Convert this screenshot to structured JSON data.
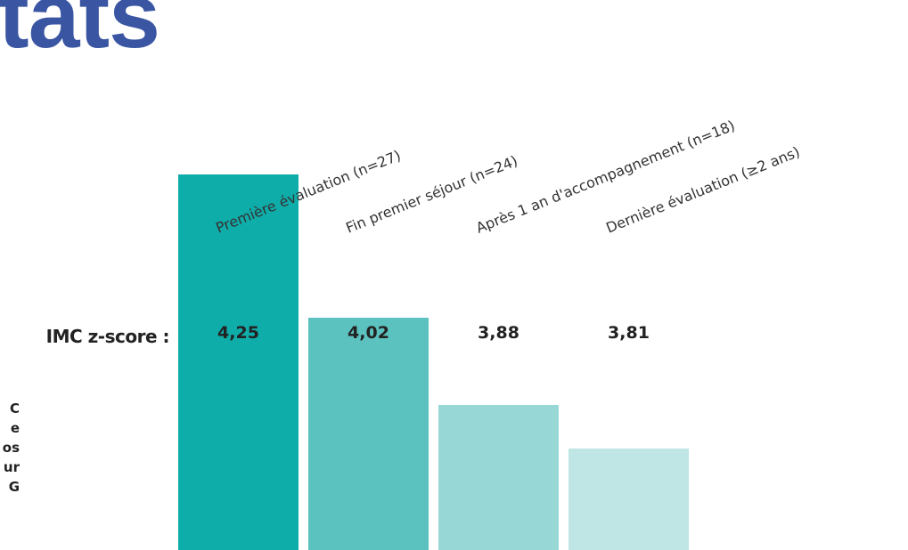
{
  "header": {
    "title_fragment": "tats"
  },
  "side_text": {
    "fragments": [
      "C",
      "e",
      "os",
      "ur",
      "G"
    ]
  },
  "chart_data": {
    "type": "bar",
    "title": "",
    "row_label": "IMC z-score :",
    "categories": [
      "Première évaluation (n=27)",
      "Fin premier séjour (n=24)",
      "Après 1 an d'accompagnement (n=18)",
      "Dernière évaluation (≥2 ans)"
    ],
    "values": [
      4.25,
      4.02,
      3.88,
      3.81
    ],
    "value_labels": [
      "4,25",
      "4,02",
      "3,88",
      "3,81"
    ],
    "bar_colors": [
      "#0fadaa",
      "#5cc2bf",
      "#97d8d6",
      "#bfe5e4"
    ],
    "xlabel": "",
    "ylabel": "",
    "grid": false
  }
}
